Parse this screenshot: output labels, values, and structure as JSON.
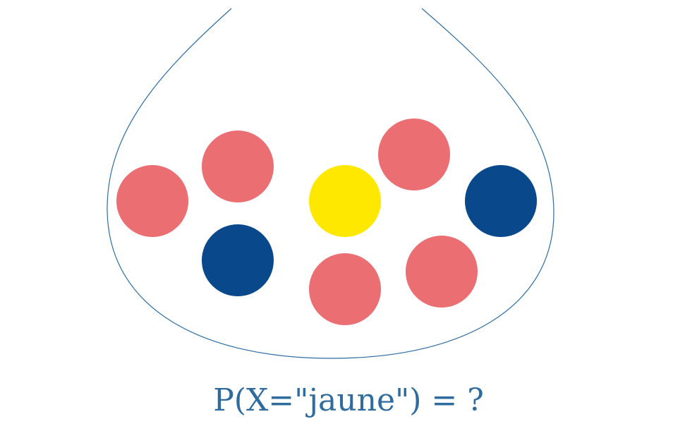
{
  "caption": "P(X=\"jaune\") = ?",
  "colors": {
    "urn_outline": "#2e6da4",
    "caption_text": "#2e6b9e"
  },
  "balls": [
    {
      "name": "ball-red-1",
      "color_name": "red",
      "fill": "#eb6e72"
    },
    {
      "name": "ball-red-2",
      "color_name": "red",
      "fill": "#eb6e72"
    },
    {
      "name": "ball-blue-1",
      "color_name": "blue",
      "fill": "#0a488c"
    },
    {
      "name": "ball-yellow-1",
      "color_name": "yellow",
      "fill": "#ffe800"
    },
    {
      "name": "ball-red-3",
      "color_name": "red",
      "fill": "#eb6e72"
    },
    {
      "name": "ball-red-4",
      "color_name": "red",
      "fill": "#eb6e72"
    },
    {
      "name": "ball-red-5",
      "color_name": "red",
      "fill": "#eb6e72"
    },
    {
      "name": "ball-blue-2",
      "color_name": "blue",
      "fill": "#0a488c"
    }
  ]
}
